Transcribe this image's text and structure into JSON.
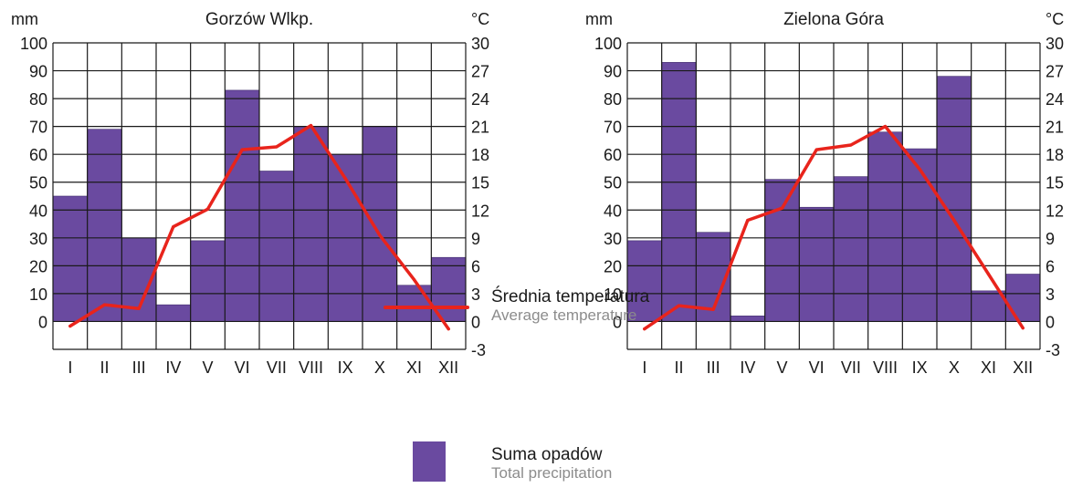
{
  "colors": {
    "bar": "#6a4aa0",
    "bar_stroke": "#3e2a6a",
    "temp_line": "#e8241c",
    "grid": "#1a1a1a"
  },
  "chart_data": [
    {
      "type": "bar",
      "title": "Gorzów Wlkp.",
      "left_unit": "mm",
      "right_unit": "°C",
      "categories": [
        "I",
        "II",
        "III",
        "IV",
        "V",
        "VI",
        "VII",
        "VIII",
        "IX",
        "X",
        "XI",
        "XII"
      ],
      "series": [
        {
          "name": "Suma opadów",
          "axis": "left",
          "type": "bar",
          "values": [
            45,
            69,
            30,
            6,
            29,
            83,
            54,
            70,
            60,
            70,
            13,
            23
          ]
        },
        {
          "name": "Średnia temperatura",
          "axis": "right",
          "type": "line",
          "values": [
            -0.5,
            1.8,
            1.4,
            10.2,
            12.1,
            18.5,
            18.8,
            21.1,
            15.4,
            9.3,
            4.5,
            -0.8
          ]
        }
      ],
      "left_ticks": [
        "100",
        "90",
        "80",
        "70",
        "60",
        "50",
        "40",
        "30",
        "20",
        "10",
        "0"
      ],
      "right_ticks": [
        "30",
        "27",
        "24",
        "21",
        "18",
        "15",
        "12",
        "9",
        "6",
        "3",
        "0",
        "-3"
      ],
      "ylim_left": [
        -10,
        100
      ],
      "ylim_right": [
        -3,
        30
      ],
      "grid": true
    },
    {
      "type": "bar",
      "title": "Zielona Góra",
      "left_unit": "mm",
      "right_unit": "°C",
      "categories": [
        "I",
        "II",
        "III",
        "IV",
        "V",
        "VI",
        "VII",
        "VIII",
        "IX",
        "X",
        "XI",
        "XII"
      ],
      "series": [
        {
          "name": "Suma opadów",
          "axis": "left",
          "type": "bar",
          "values": [
            29,
            93,
            32,
            2,
            51,
            41,
            52,
            68,
            62,
            88,
            11,
            17
          ]
        },
        {
          "name": "Średnia temperatura",
          "axis": "right",
          "type": "line",
          "values": [
            -0.8,
            1.7,
            1.3,
            10.9,
            12.2,
            18.5,
            19.0,
            21.0,
            16.4,
            10.9,
            5.1,
            -0.7
          ]
        }
      ],
      "left_ticks": [
        "100",
        "90",
        "80",
        "70",
        "60",
        "50",
        "40",
        "30",
        "20",
        "10",
        "0"
      ],
      "right_ticks": [
        "30",
        "27",
        "24",
        "21",
        "18",
        "15",
        "12",
        "9",
        "6",
        "3",
        "0",
        "-3"
      ],
      "ylim_left": [
        -10,
        100
      ],
      "ylim_right": [
        -3,
        30
      ],
      "grid": true
    }
  ],
  "legend": {
    "temp_pl": "Średnia temperatura",
    "temp_en": "Average temperature",
    "precip_pl": "Suma opadów",
    "precip_en": "Total precipitation"
  }
}
